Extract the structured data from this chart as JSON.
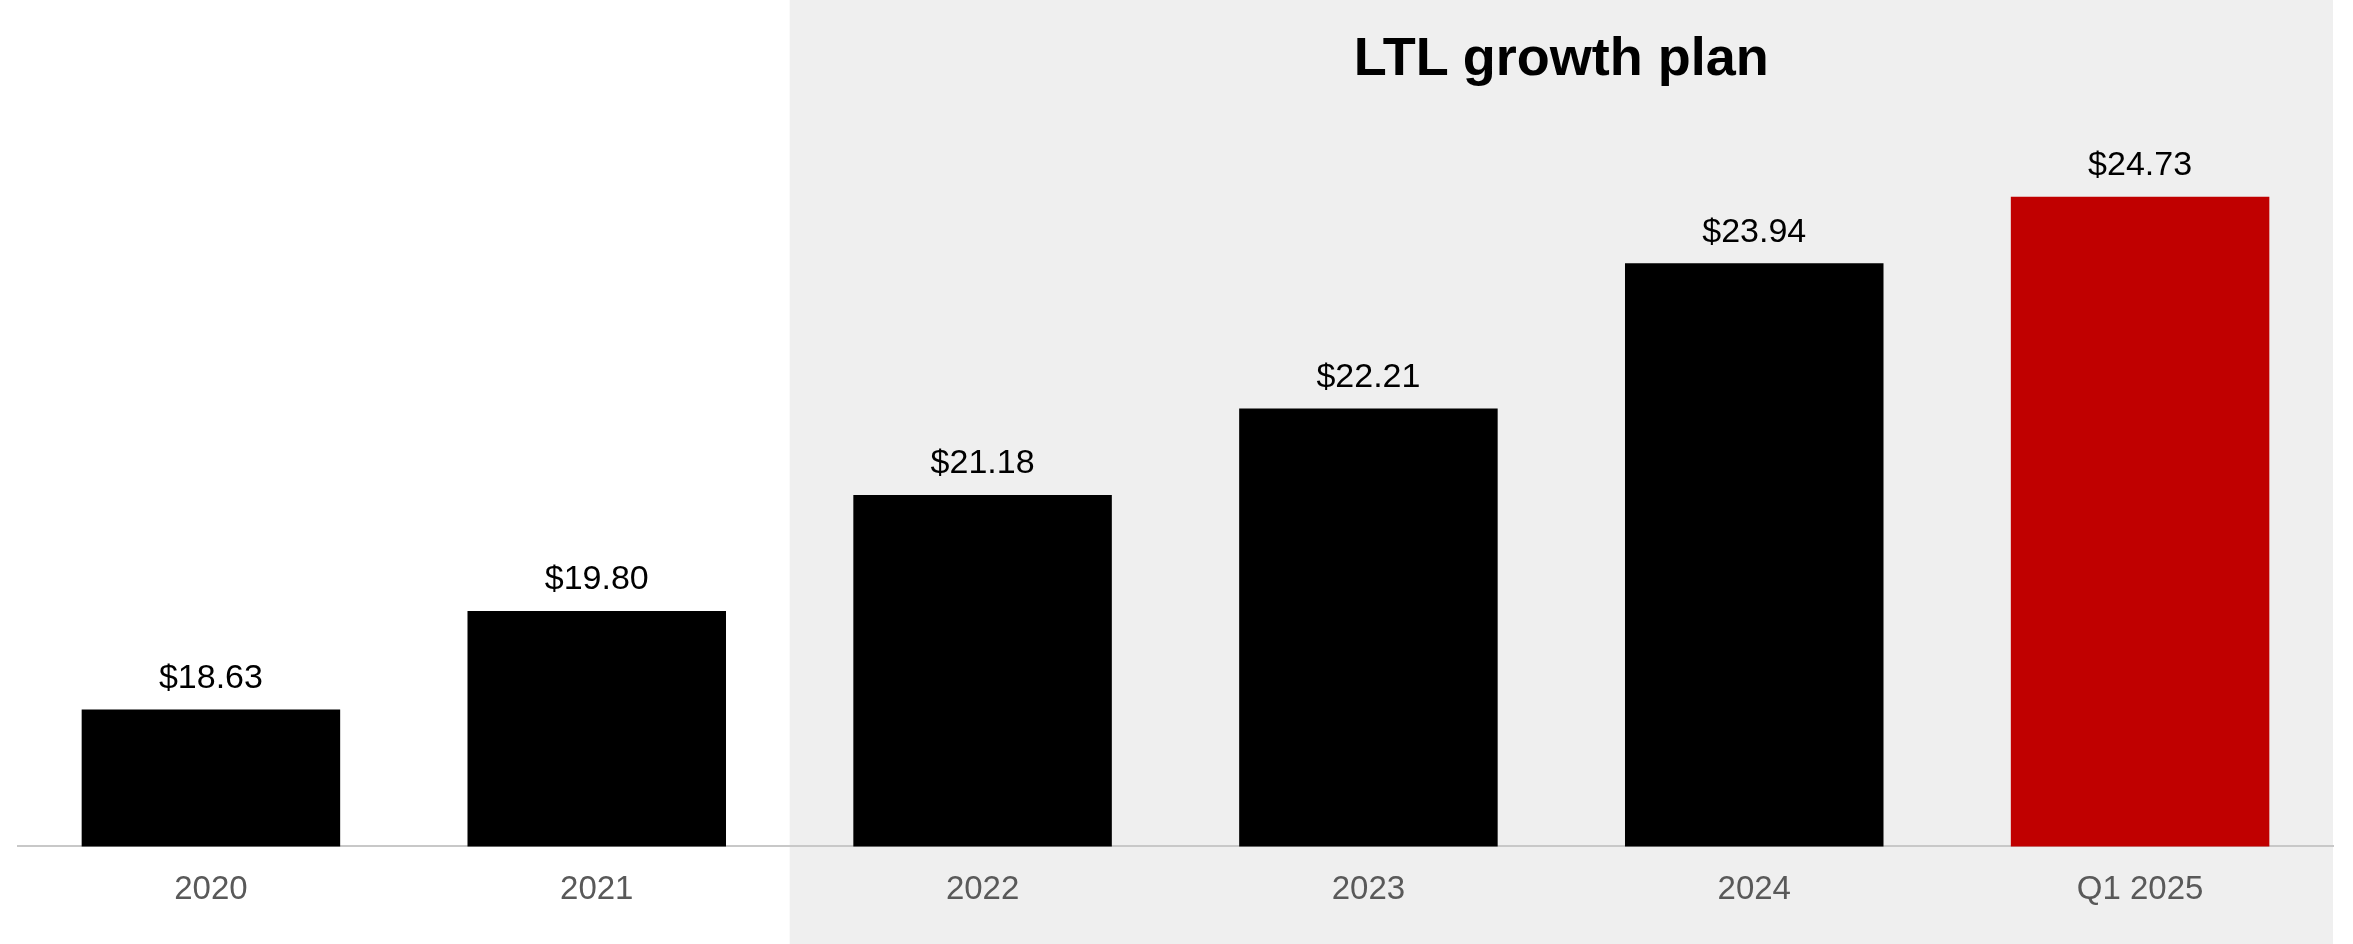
{
  "chart_data": {
    "type": "bar",
    "title": "LTL growth plan",
    "categories": [
      "2020",
      "2021",
      "2022",
      "2023",
      "2024",
      "Q1 2025"
    ],
    "values": [
      18.63,
      19.8,
      21.18,
      22.21,
      23.94,
      24.73
    ],
    "colors": [
      "#000000",
      "#000000",
      "#000000",
      "#000000",
      "#000000",
      "#c00000"
    ],
    "value_labels": [
      "$18.63",
      "$19.80",
      "$21.18",
      "$22.21",
      "$23.94",
      "$24.73"
    ],
    "tick_labels": "x",
    "grid": false,
    "legend": false,
    "bands": [
      {
        "axis": "x",
        "from": "2022",
        "to": "Q1 2025",
        "color": "#efefef"
      }
    ]
  }
}
